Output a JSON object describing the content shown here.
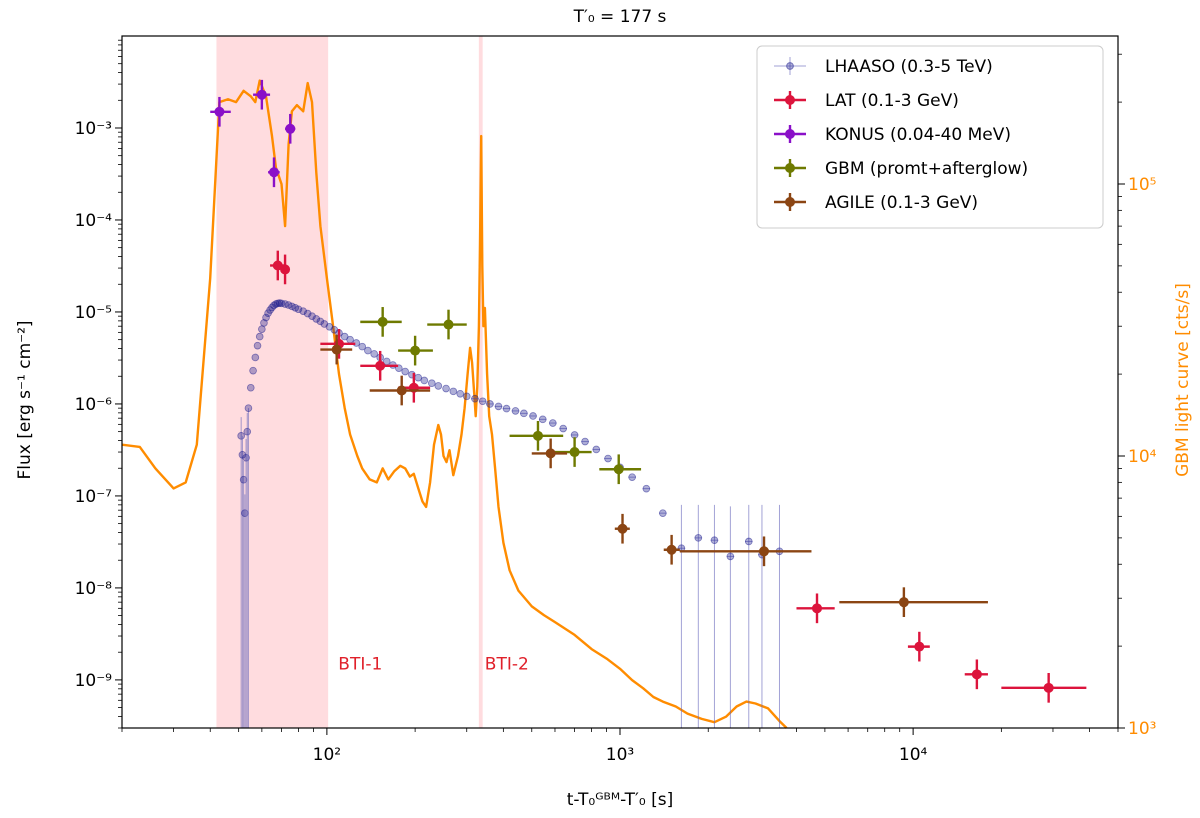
{
  "chart_data": {
    "type": "scatter",
    "title": "T′₀ = 177 s",
    "xlabel": "t-T₀ᴳᴮᴹ-T′₀ [s]",
    "ylabel": "Flux [erg s⁻¹ cm⁻²]",
    "y2label": "GBM light curve [cts/s]",
    "xscale": "log",
    "yscale": "log",
    "y2scale": "log",
    "xlim": [
      20,
      50000
    ],
    "ylim": [
      3e-10,
      0.01
    ],
    "y2lim": [
      1000,
      350000
    ],
    "x_ticks": [
      {
        "value": 100,
        "label": "10²"
      },
      {
        "value": 1000,
        "label": "10³"
      },
      {
        "value": 10000,
        "label": "10⁴"
      }
    ],
    "y_ticks": [
      {
        "value": 1e-09,
        "label": "10⁻⁹"
      },
      {
        "value": 1e-08,
        "label": "10⁻⁸"
      },
      {
        "value": 1e-07,
        "label": "10⁻⁷"
      },
      {
        "value": 1e-06,
        "label": "10⁻⁶"
      },
      {
        "value": 1e-05,
        "label": "10⁻⁵"
      },
      {
        "value": 0.0001,
        "label": "10⁻⁴"
      },
      {
        "value": 0.001,
        "label": "10⁻³"
      }
    ],
    "y2_ticks": [
      {
        "value": 1000,
        "label": "10³"
      },
      {
        "value": 10000,
        "label": "10⁴"
      },
      {
        "value": 100000,
        "label": "10⁵"
      }
    ],
    "shaded_regions": [
      {
        "name": "BTI-1",
        "x": [
          42,
          101
        ],
        "color": "#ffd0d4"
      },
      {
        "name": "BTI-2",
        "x": [
          330,
          340
        ],
        "color": "#ffd0d4"
      }
    ],
    "annotations": [
      {
        "text": "BTI-1",
        "x": 106,
        "y": 1.3e-09
      },
      {
        "text": "BTI-2",
        "x": 335,
        "y": 1.3e-09
      }
    ],
    "legend_position": "top-right",
    "series": [
      {
        "name": "LHAASO (0.3-5 TeV)",
        "color": "#8888cc",
        "marker": "small-circle",
        "points": [
          [
            51.0,
            4.5e-07
          ],
          [
            51.5,
            2.8e-07
          ],
          [
            52.0,
            1.5e-07
          ],
          [
            52.5,
            6.5e-08
          ],
          [
            53.0,
            2.6e-07
          ],
          [
            53.5,
            5e-07
          ],
          [
            54.0,
            9e-07
          ],
          [
            55.0,
            1.5e-06
          ],
          [
            56.0,
            2.3e-06
          ],
          [
            57.0,
            3.2e-06
          ],
          [
            58.0,
            4.3e-06
          ],
          [
            59.0,
            5.4e-06
          ],
          [
            60.0,
            6.5e-06
          ],
          [
            61.0,
            7.6e-06
          ],
          [
            62.0,
            8.7e-06
          ],
          [
            63.0,
            9.7e-06
          ],
          [
            64.0,
            1.05e-05
          ],
          [
            65.0,
            1.12e-05
          ],
          [
            66.0,
            1.18e-05
          ],
          [
            67.0,
            1.22e-05
          ],
          [
            68.0,
            1.24e-05
          ],
          [
            69.0,
            1.25e-05
          ],
          [
            70.0,
            1.24e-05
          ],
          [
            72.0,
            1.22e-05
          ],
          [
            74.0,
            1.19e-05
          ],
          [
            76.0,
            1.15e-05
          ],
          [
            78.0,
            1.11e-05
          ],
          [
            80.0,
            1.07e-05
          ],
          [
            83.0,
            1.02e-05
          ],
          [
            86.0,
            9.6e-06
          ],
          [
            89.0,
            9e-06
          ],
          [
            92.0,
            8.4e-06
          ],
          [
            95.0,
            7.9e-06
          ],
          [
            98.0,
            7.4e-06
          ],
          [
            102.0,
            6.9e-06
          ],
          [
            106.0,
            6.4e-06
          ],
          [
            110.0,
            5.9e-06
          ],
          [
            115.0,
            5.4e-06
          ],
          [
            120.0,
            5e-06
          ],
          [
            126.0,
            4.6e-06
          ],
          [
            132.0,
            4.2e-06
          ],
          [
            138.0,
            3.8e-06
          ],
          [
            145.0,
            3.5e-06
          ],
          [
            152.0,
            3.2e-06
          ],
          [
            160.0,
            2.9e-06
          ],
          [
            168.0,
            2.65e-06
          ],
          [
            176.0,
            2.45e-06
          ],
          [
            185.0,
            2.25e-06
          ],
          [
            195.0,
            2.08e-06
          ],
          [
            205.0,
            1.93e-06
          ],
          [
            215.0,
            1.8e-06
          ],
          [
            228.0,
            1.68e-06
          ],
          [
            240.0,
            1.57e-06
          ],
          [
            255.0,
            1.47e-06
          ],
          [
            270.0,
            1.37e-06
          ],
          [
            285.0,
            1.29e-06
          ],
          [
            300.0,
            1.21e-06
          ],
          [
            320.0,
            1.14e-06
          ],
          [
            340.0,
            1.07e-06
          ],
          [
            360.0,
            1e-06
          ],
          [
            385.0,
            9.4e-07
          ],
          [
            410.0,
            8.9e-07
          ],
          [
            440.0,
            8.4e-07
          ],
          [
            470.0,
            7.9e-07
          ],
          [
            505.0,
            7.4e-07
          ],
          [
            545.0,
            6.8e-07
          ],
          [
            590.0,
            6.2e-07
          ],
          [
            640.0,
            5.4e-07
          ],
          [
            700.0,
            4.6e-07
          ],
          [
            760.0,
            3.9e-07
          ],
          [
            830.0,
            3.2e-07
          ],
          [
            910.0,
            2.55e-07
          ],
          [
            1000.0,
            2.05e-07
          ],
          [
            1100.0,
            1.6e-07
          ],
          [
            1230.0,
            1.2e-07
          ],
          [
            1400.0,
            6.5e-08
          ],
          [
            1620.0,
            2.7e-08
          ],
          [
            1850.0,
            3.5e-08
          ],
          [
            2100.0,
            3.3e-08
          ],
          [
            2380.0,
            2.2e-08
          ],
          [
            2750.0,
            3.2e-08
          ],
          [
            3050.0,
            2.3e-08
          ],
          [
            3500.0,
            2.5e-08
          ]
        ]
      },
      {
        "name": "LAT (0.1-3 GeV)",
        "color": "#dc143c",
        "marker": "circle",
        "points": [
          [
            68,
            3.2e-05
          ],
          [
            72,
            2.9e-05
          ],
          [
            110,
            4.5e-06
          ],
          [
            152,
            2.6e-06
          ],
          [
            198,
            1.5e-06
          ],
          [
            4700,
            6e-09
          ],
          [
            10500,
            2.3e-09
          ],
          [
            16500,
            1.15e-09
          ],
          [
            29000,
            8.2e-10
          ]
        ],
        "xerr": [
          [
            64,
            72
          ],
          [
            70,
            74
          ],
          [
            95,
            125
          ],
          [
            130,
            175
          ],
          [
            175,
            225
          ],
          [
            4000,
            5400
          ],
          [
            9600,
            11400
          ],
          [
            15000,
            18000
          ],
          [
            20000,
            39000
          ]
        ]
      },
      {
        "name": "KONUS (0.04-40 MeV)",
        "color": "#8a10c8",
        "marker": "circle",
        "points": [
          [
            43,
            0.0015
          ],
          [
            60,
            0.0023
          ],
          [
            66,
            0.00033
          ],
          [
            75,
            0.00098
          ]
        ],
        "xerr": [
          [
            40,
            47
          ],
          [
            56,
            64
          ],
          [
            63,
            69
          ],
          [
            72,
            78
          ]
        ]
      },
      {
        "name": "GBM (promt+afterglow)",
        "color": "#6e7a00",
        "marker": "circle",
        "points": [
          [
            155,
            7.8e-06
          ],
          [
            260,
            7.3e-06
          ],
          [
            200,
            3.8e-06
          ],
          [
            525,
            4.5e-07
          ],
          [
            700,
            3e-07
          ],
          [
            990,
            1.95e-07
          ]
        ],
        "xerr": [
          [
            130,
            180
          ],
          [
            220,
            300
          ],
          [
            175,
            230
          ],
          [
            420,
            640
          ],
          [
            600,
            800
          ],
          [
            850,
            1180
          ]
        ]
      },
      {
        "name": "AGILE (0.1-3 GeV)",
        "color": "#8b4513",
        "marker": "circle",
        "points": [
          [
            108,
            3.9e-06
          ],
          [
            180,
            1.4e-06
          ],
          [
            580,
            2.9e-07
          ],
          [
            1020,
            4.4e-08
          ],
          [
            1500,
            2.6e-08
          ],
          [
            3100,
            2.5e-08
          ],
          [
            9300,
            7e-09
          ]
        ],
        "xerr": [
          [
            95,
            122
          ],
          [
            140,
            225
          ],
          [
            500,
            660
          ],
          [
            960,
            1080
          ],
          [
            1410,
            1600
          ],
          [
            1600,
            4500
          ],
          [
            5600,
            18000
          ]
        ]
      }
    ],
    "gbm_light_curve": {
      "name": "GBM light curve",
      "color": "#ff8c00",
      "points": [
        [
          20,
          11000
        ],
        [
          23,
          10800
        ],
        [
          26,
          9000
        ],
        [
          30,
          7600
        ],
        [
          33,
          8000
        ],
        [
          36,
          11000
        ],
        [
          40,
          45000
        ],
        [
          43,
          200000
        ],
        [
          46,
          205000
        ],
        [
          49,
          200000
        ],
        [
          52,
          220000
        ],
        [
          55,
          210000
        ],
        [
          57,
          200000
        ],
        [
          59,
          240000
        ],
        [
          62,
          210000
        ],
        [
          65,
          150000
        ],
        [
          67,
          115000
        ],
        [
          70,
          100000
        ],
        [
          72,
          70000
        ],
        [
          74,
          140000
        ],
        [
          76,
          185000
        ],
        [
          79,
          195000
        ],
        [
          83,
          185000
        ],
        [
          86,
          235000
        ],
        [
          89,
          200000
        ],
        [
          92,
          110000
        ],
        [
          95,
          70000
        ],
        [
          100,
          45000
        ],
        [
          105,
          30000
        ],
        [
          110,
          20000
        ],
        [
          115,
          15000
        ],
        [
          120,
          12000
        ],
        [
          127,
          10000
        ],
        [
          132,
          9000
        ],
        [
          140,
          8200
        ],
        [
          148,
          8000
        ],
        [
          155,
          9000
        ],
        [
          162,
          8200
        ],
        [
          170,
          8800
        ],
        [
          178,
          9200
        ],
        [
          185,
          9000
        ],
        [
          192,
          8400
        ],
        [
          198,
          8600
        ],
        [
          205,
          7600
        ],
        [
          212,
          6800
        ],
        [
          218,
          6500
        ],
        [
          225,
          8000
        ],
        [
          232,
          11000
        ],
        [
          240,
          13000
        ],
        [
          245,
          12000
        ],
        [
          250,
          10000
        ],
        [
          256,
          9500
        ],
        [
          262,
          10500
        ],
        [
          270,
          8500
        ],
        [
          280,
          10000
        ],
        [
          288,
          12000
        ],
        [
          295,
          15000
        ],
        [
          302,
          20000
        ],
        [
          308,
          25000
        ],
        [
          313,
          22000
        ],
        [
          318,
          17000
        ],
        [
          322,
          14000
        ],
        [
          326,
          18000
        ],
        [
          330,
          30000
        ],
        [
          333,
          60000
        ],
        [
          336,
          150000
        ],
        [
          339,
          50000
        ],
        [
          342,
          30000
        ],
        [
          346,
          35000
        ],
        [
          352,
          20000
        ],
        [
          358,
          14000
        ],
        [
          366,
          12000
        ],
        [
          375,
          9000
        ],
        [
          385,
          6500
        ],
        [
          400,
          4800
        ],
        [
          420,
          3800
        ],
        [
          450,
          3200
        ],
        [
          500,
          2800
        ],
        [
          550,
          2600
        ],
        [
          600,
          2450
        ],
        [
          700,
          2200
        ],
        [
          800,
          1950
        ],
        [
          900,
          1800
        ],
        [
          1000,
          1650
        ],
        [
          1100,
          1500
        ],
        [
          1200,
          1400
        ],
        [
          1300,
          1300
        ],
        [
          1400,
          1250
        ],
        [
          1550,
          1200
        ],
        [
          1700,
          1130
        ],
        [
          1900,
          1080
        ],
        [
          2100,
          1050
        ],
        [
          2300,
          1100
        ],
        [
          2500,
          1200
        ],
        [
          2700,
          1250
        ],
        [
          2900,
          1230
        ],
        [
          3200,
          1180
        ],
        [
          3500,
          1060
        ],
        [
          3700,
          1000
        ]
      ]
    }
  }
}
